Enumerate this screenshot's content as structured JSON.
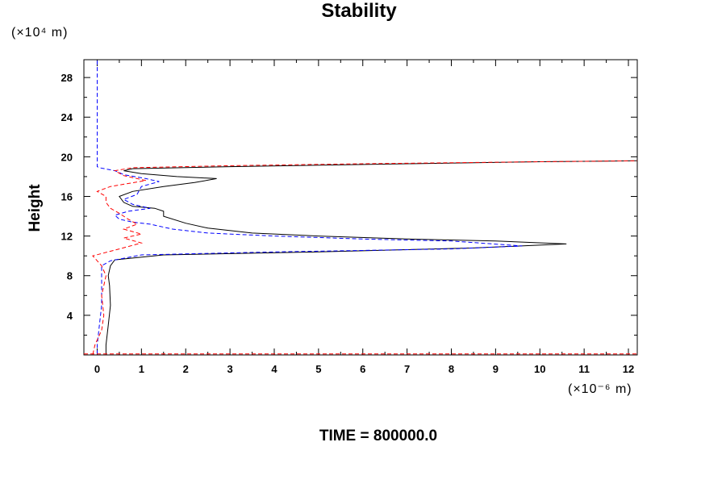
{
  "chart_data": {
    "type": "line",
    "title": "Stability",
    "ylabel": "Height",
    "xlabel": "",
    "y_units": "(×10⁴ m)",
    "x_units": "(×10⁻⁶ m)",
    "footer": "TIME = 800000.0",
    "xlim": [
      -0.3,
      12.2
    ],
    "ylim": [
      0,
      29.8
    ],
    "x_ticks": [
      0,
      1,
      2,
      3,
      4,
      5,
      6,
      7,
      8,
      9,
      10,
      11,
      12
    ],
    "y_ticks": [
      4,
      8,
      12,
      16,
      20,
      24,
      28
    ],
    "grid": false,
    "series": [
      {
        "color": "#000000",
        "dash": "solid",
        "points": [
          [
            0.2,
            0.05
          ],
          [
            0.2,
            1
          ],
          [
            0.25,
            3
          ],
          [
            0.3,
            5
          ],
          [
            0.28,
            7
          ],
          [
            0.25,
            8
          ],
          [
            0.3,
            9
          ],
          [
            0.4,
            9.6
          ],
          [
            1.5,
            10.1
          ],
          [
            5,
            10.4
          ],
          [
            8.5,
            10.8
          ],
          [
            10.6,
            11.2
          ],
          [
            9,
            11.5
          ],
          [
            7,
            11.7
          ],
          [
            5,
            12
          ],
          [
            3.5,
            12.3
          ],
          [
            2.5,
            12.8
          ],
          [
            2,
            13.3
          ],
          [
            1.5,
            14
          ],
          [
            1.5,
            14.5
          ],
          [
            1.3,
            14.8
          ],
          [
            0.8,
            15
          ],
          [
            0.6,
            15.4
          ],
          [
            0.5,
            16
          ],
          [
            0.8,
            16.5
          ],
          [
            1.5,
            17
          ],
          [
            2.2,
            17.4
          ],
          [
            2.7,
            17.8
          ],
          [
            1.8,
            18
          ],
          [
            1,
            18.3
          ],
          [
            0.6,
            18.6
          ],
          [
            0.8,
            18.8
          ],
          [
            3,
            19
          ],
          [
            7,
            19.3
          ],
          [
            10,
            19.5
          ],
          [
            12.2,
            19.6
          ]
        ]
      },
      {
        "color": "#0000ff",
        "dash": "dashed",
        "points": [
          [
            0,
            0.05
          ],
          [
            0,
            1
          ],
          [
            0.05,
            3
          ],
          [
            0.1,
            5
          ],
          [
            0.1,
            7
          ],
          [
            0.1,
            8
          ],
          [
            0.1,
            9
          ],
          [
            0.3,
            9.5
          ],
          [
            1,
            10.1
          ],
          [
            4,
            10.4
          ],
          [
            8,
            10.7
          ],
          [
            9.6,
            11
          ],
          [
            8,
            11.5
          ],
          [
            6,
            11.7
          ],
          [
            4,
            12
          ],
          [
            2.5,
            12.3
          ],
          [
            1.7,
            12.7
          ],
          [
            1.2,
            13.2
          ],
          [
            0.8,
            13.4
          ],
          [
            0.5,
            13.7
          ],
          [
            0.4,
            14.1
          ],
          [
            0.7,
            14.5
          ],
          [
            1.2,
            14.8
          ],
          [
            0.8,
            15.2
          ],
          [
            0.6,
            15.7
          ],
          [
            0.9,
            16.2
          ],
          [
            1,
            17
          ],
          [
            1.4,
            17.5
          ],
          [
            1.1,
            17.8
          ],
          [
            0.6,
            18.2
          ],
          [
            0.4,
            18.6
          ],
          [
            0.05,
            18.9
          ],
          [
            0,
            19
          ],
          [
            0,
            29.8
          ]
        ]
      },
      {
        "color": "#ff0000",
        "dash": "dashed",
        "points": [
          [
            -0.1,
            0.05
          ],
          [
            -0.05,
            1
          ],
          [
            0.1,
            2.5
          ],
          [
            0.15,
            4
          ],
          [
            0.1,
            6
          ],
          [
            0.2,
            8
          ],
          [
            0.1,
            9
          ],
          [
            -0.1,
            10
          ],
          [
            0.5,
            10.7
          ],
          [
            1,
            11.3
          ],
          [
            0.6,
            11.8
          ],
          [
            1,
            12.2
          ],
          [
            0.6,
            12.7
          ],
          [
            0.9,
            13.2
          ],
          [
            0.7,
            13.7
          ],
          [
            0.5,
            14.3
          ],
          [
            0.3,
            14.8
          ],
          [
            0.2,
            15.4
          ],
          [
            0.2,
            16
          ],
          [
            0,
            16.5
          ],
          [
            0.3,
            17
          ],
          [
            1.1,
            17.6
          ],
          [
            0.6,
            18.1
          ],
          [
            0.4,
            18.6
          ],
          [
            0.8,
            18.9
          ],
          [
            3,
            19.1
          ],
          [
            6,
            19.3
          ],
          [
            10,
            19.5
          ],
          [
            12.2,
            19.6
          ]
        ]
      },
      {
        "color": "#ff0000",
        "dash": "dashed",
        "points": [
          [
            -0.3,
            0.1
          ],
          [
            12.2,
            0.1
          ]
        ]
      }
    ]
  }
}
